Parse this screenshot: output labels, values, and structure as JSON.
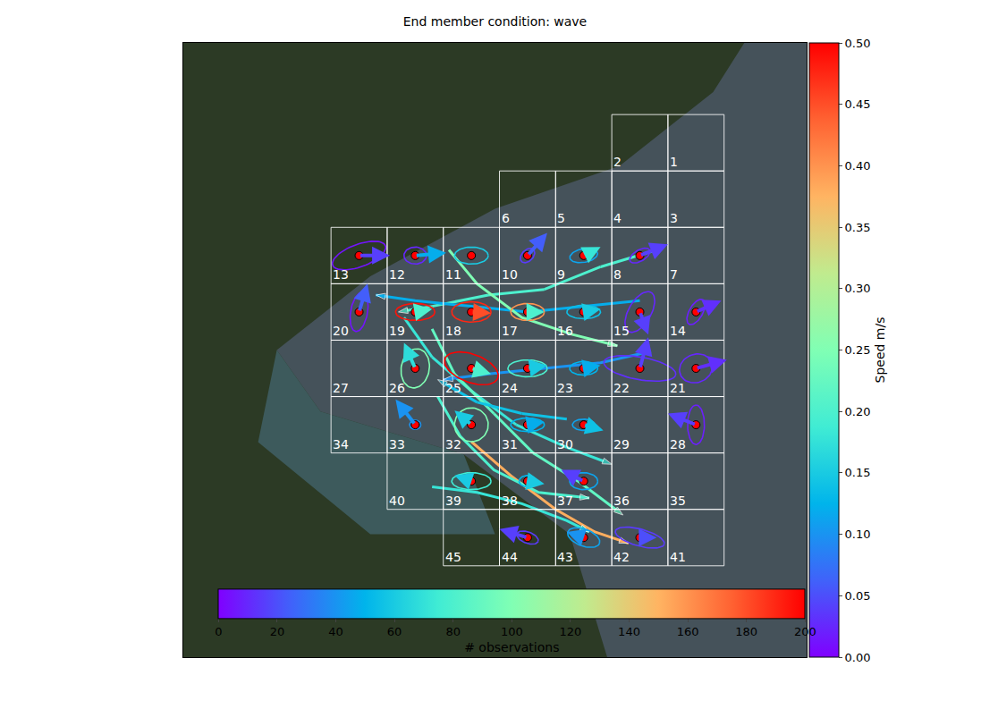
{
  "chart_data": {
    "type": "vector_map",
    "title": "End member condition: wave",
    "xlim": [
      -2.63,
      8.47
    ],
    "ylim": [
      -1.62,
      9.27
    ],
    "tick_labels": false,
    "grid": true,
    "cells": [
      {
        "label": "1",
        "x": 6,
        "y": 7
      },
      {
        "label": "2",
        "x": 5,
        "y": 7
      },
      {
        "label": "3",
        "x": 6,
        "y": 6
      },
      {
        "label": "4",
        "x": 5,
        "y": 6
      },
      {
        "label": "5",
        "x": 4,
        "y": 6
      },
      {
        "label": "6",
        "x": 3,
        "y": 6
      },
      {
        "label": "7",
        "x": 6,
        "y": 5
      },
      {
        "label": "8",
        "x": 5,
        "y": 5
      },
      {
        "label": "9",
        "x": 4,
        "y": 5
      },
      {
        "label": "10",
        "x": 3,
        "y": 5
      },
      {
        "label": "11",
        "x": 2,
        "y": 5
      },
      {
        "label": "12",
        "x": 1,
        "y": 5
      },
      {
        "label": "13",
        "x": 0,
        "y": 5
      },
      {
        "label": "14",
        "x": 6,
        "y": 4
      },
      {
        "label": "15",
        "x": 5,
        "y": 4
      },
      {
        "label": "16",
        "x": 4,
        "y": 4
      },
      {
        "label": "17",
        "x": 3,
        "y": 4
      },
      {
        "label": "18",
        "x": 2,
        "y": 4
      },
      {
        "label": "19",
        "x": 1,
        "y": 4
      },
      {
        "label": "20",
        "x": 0,
        "y": 4
      },
      {
        "label": "21",
        "x": 6,
        "y": 3
      },
      {
        "label": "22",
        "x": 5,
        "y": 3
      },
      {
        "label": "23",
        "x": 4,
        "y": 3
      },
      {
        "label": "24",
        "x": 3,
        "y": 3
      },
      {
        "label": "25",
        "x": 2,
        "y": 3
      },
      {
        "label": "26",
        "x": 1,
        "y": 3
      },
      {
        "label": "27",
        "x": 0,
        "y": 3
      },
      {
        "label": "28",
        "x": 6,
        "y": 2
      },
      {
        "label": "29",
        "x": 5,
        "y": 2
      },
      {
        "label": "30",
        "x": 4,
        "y": 2
      },
      {
        "label": "31",
        "x": 3,
        "y": 2
      },
      {
        "label": "32",
        "x": 2,
        "y": 2
      },
      {
        "label": "33",
        "x": 1,
        "y": 2
      },
      {
        "label": "34",
        "x": 0,
        "y": 2
      },
      {
        "label": "35",
        "x": 6,
        "y": 1
      },
      {
        "label": "36",
        "x": 5,
        "y": 1
      },
      {
        "label": "37",
        "x": 4,
        "y": 1
      },
      {
        "label": "38",
        "x": 3,
        "y": 1
      },
      {
        "label": "39",
        "x": 2,
        "y": 1
      },
      {
        "label": "40",
        "x": 1,
        "y": 1
      },
      {
        "label": "41",
        "x": 6,
        "y": 0
      },
      {
        "label": "42",
        "x": 5,
        "y": 0
      },
      {
        "label": "43",
        "x": 4,
        "y": 0
      },
      {
        "label": "44",
        "x": 3,
        "y": 0
      },
      {
        "label": "45",
        "x": 2,
        "y": 0
      }
    ],
    "stations": [
      {
        "cell": "13",
        "dx": 0.55,
        "dy": 0.0,
        "speed": 0.04,
        "observations": 5,
        "a": 0.5,
        "b": 0.2,
        "angle": 20
      },
      {
        "cell": "12",
        "dx": 0.55,
        "dy": 0.05,
        "speed": 0.12,
        "observations": 10,
        "a": 0.2,
        "b": 0.15,
        "angle": 0
      },
      {
        "cell": "11",
        "dx": 0.1,
        "dy": 0.0,
        "speed": 0.18,
        "observations": 60,
        "a": 0.3,
        "b": 0.15,
        "angle": 0
      },
      {
        "cell": "10",
        "dx": 0.35,
        "dy": 0.4,
        "speed": 0.06,
        "observations": 15,
        "a": 0.15,
        "b": 0.1,
        "angle": 45
      },
      {
        "cell": "9",
        "dx": 0.3,
        "dy": 0.15,
        "speed": 0.18,
        "observations": 45,
        "a": 0.25,
        "b": 0.12,
        "angle": 10
      },
      {
        "cell": "8",
        "dx": 0.5,
        "dy": 0.2,
        "speed": 0.04,
        "observations": 10,
        "a": 0.2,
        "b": 0.1,
        "angle": 30
      },
      {
        "cell": "20",
        "dx": 0.15,
        "dy": 0.5,
        "speed": 0.06,
        "observations": 5,
        "a": 0.35,
        "b": 0.15,
        "angle": 80
      },
      {
        "cell": "19",
        "dx": 0.3,
        "dy": 0.05,
        "speed": 0.2,
        "observations": 195,
        "a": 0.35,
        "b": 0.15,
        "angle": 0
      },
      {
        "cell": "18",
        "dx": 0.35,
        "dy": -0.02,
        "speed": 0.45,
        "observations": 190,
        "a": 0.35,
        "b": 0.18,
        "angle": 0
      },
      {
        "cell": "17",
        "dx": 0.3,
        "dy": 0.0,
        "speed": 0.2,
        "observations": 160,
        "a": 0.3,
        "b": 0.15,
        "angle": 0
      },
      {
        "cell": "16",
        "dx": 0.3,
        "dy": 0.05,
        "speed": 0.15,
        "observations": 55,
        "a": 0.3,
        "b": 0.12,
        "angle": 0
      },
      {
        "cell": "15",
        "dx": 0.15,
        "dy": -0.4,
        "speed": 0.04,
        "observations": 10,
        "a": 0.4,
        "b": 0.2,
        "angle": 60
      },
      {
        "cell": "14",
        "dx": 0.45,
        "dy": 0.2,
        "speed": 0.03,
        "observations": 8,
        "a": 0.25,
        "b": 0.12,
        "angle": 60
      },
      {
        "cell": "26",
        "dx": -0.2,
        "dy": 0.45,
        "speed": 0.17,
        "observations": 100,
        "a": 0.35,
        "b": 0.25,
        "angle": 80
      },
      {
        "cell": "25",
        "dx": 0.35,
        "dy": -0.1,
        "speed": 0.2,
        "observations": 200,
        "a": 0.5,
        "b": 0.25,
        "angle": -20
      },
      {
        "cell": "24",
        "dx": 0.35,
        "dy": 0.05,
        "speed": 0.15,
        "observations": 80,
        "a": 0.35,
        "b": 0.15,
        "angle": 0
      },
      {
        "cell": "23",
        "dx": 0.3,
        "dy": 0.05,
        "speed": 0.12,
        "observations": 50,
        "a": 0.25,
        "b": 0.12,
        "angle": 0
      },
      {
        "cell": "22",
        "dx": 0.15,
        "dy": 0.55,
        "speed": 0.04,
        "observations": 12,
        "a": 0.65,
        "b": 0.2,
        "angle": -10
      },
      {
        "cell": "21",
        "dx": 0.55,
        "dy": 0.15,
        "speed": 0.03,
        "observations": 10,
        "a": 0.3,
        "b": 0.25,
        "angle": 20
      },
      {
        "cell": "33",
        "dx": -0.35,
        "dy": 0.45,
        "speed": 0.1,
        "observations": 40,
        "a": 0.1,
        "b": 0.08,
        "angle": 0
      },
      {
        "cell": "32",
        "dx": -0.3,
        "dy": 0.25,
        "speed": 0.15,
        "observations": 100,
        "a": 0.3,
        "b": 0.3,
        "angle": 60
      },
      {
        "cell": "31",
        "dx": 0.3,
        "dy": 0.05,
        "speed": 0.12,
        "observations": 50,
        "a": 0.3,
        "b": 0.12,
        "angle": 0
      },
      {
        "cell": "30",
        "dx": 0.35,
        "dy": -0.1,
        "speed": 0.14,
        "observations": 45,
        "a": 0.2,
        "b": 0.1,
        "angle": 0
      },
      {
        "cell": "28",
        "dx": -0.5,
        "dy": 0.2,
        "speed": 0.04,
        "observations": 8,
        "a": 0.35,
        "b": 0.15,
        "angle": 90
      },
      {
        "cell": "39",
        "dx": -0.3,
        "dy": 0.1,
        "speed": 0.15,
        "observations": 75,
        "a": 0.35,
        "b": 0.15,
        "angle": 0
      },
      {
        "cell": "38",
        "dx": 0.3,
        "dy": -0.05,
        "speed": 0.15,
        "observations": 50,
        "a": 0.15,
        "b": 0.1,
        "angle": 0
      },
      {
        "cell": "37",
        "dx": -0.4,
        "dy": 0.2,
        "speed": 0.04,
        "observations": 45,
        "a": 0.25,
        "b": 0.15,
        "angle": 0
      },
      {
        "cell": "44",
        "dx": -0.5,
        "dy": 0.15,
        "speed": 0.04,
        "observations": 15,
        "a": 0.2,
        "b": 0.1,
        "angle": -20
      },
      {
        "cell": "43",
        "dx": -0.3,
        "dy": 0.1,
        "speed": 0.1,
        "observations": 45,
        "a": 0.3,
        "b": 0.15,
        "angle": -20
      },
      {
        "cell": "42",
        "dx": 0.3,
        "dy": 0.0,
        "speed": 0.05,
        "observations": 15,
        "a": 0.45,
        "b": 0.15,
        "angle": -15
      }
    ],
    "tracks": [
      {
        "speed": 0.2,
        "x": [
          5.8,
          4.8,
          3.8,
          2.8,
          1.8,
          1.2
        ],
        "y": [
          5.6,
          5.3,
          4.9,
          4.8,
          4.6,
          4.5
        ]
      },
      {
        "speed": 0.12,
        "x": [
          5.5,
          4.5,
          3.5,
          2.5,
          1.5,
          0.8
        ],
        "y": [
          4.7,
          4.6,
          4.5,
          4.6,
          4.7,
          4.8
        ]
      },
      {
        "speed": 0.18,
        "x": [
          1.3,
          1.8,
          2.5,
          3.3,
          4.2,
          5.0
        ],
        "y": [
          4.4,
          3.7,
          3.1,
          2.5,
          2.1,
          1.8
        ]
      },
      {
        "speed": 0.22,
        "x": [
          1.8,
          2.2,
          2.9,
          3.6,
          4.4,
          5.2
        ],
        "y": [
          4.2,
          3.4,
          2.7,
          2.0,
          1.5,
          0.9
        ]
      },
      {
        "speed": 0.38,
        "x": [
          2.5,
          3.2,
          4.0,
          4.7,
          5.3
        ],
        "y": [
          2.2,
          1.6,
          1.0,
          0.6,
          0.4
        ]
      },
      {
        "speed": 0.1,
        "x": [
          5.7,
          4.8,
          3.8,
          2.8,
          2.0
        ],
        "y": [
          3.8,
          3.6,
          3.5,
          3.4,
          3.3
        ]
      },
      {
        "speed": 0.2,
        "x": [
          1.9,
          2.3,
          2.9,
          3.7,
          4.6
        ],
        "y": [
          3.0,
          2.3,
          1.7,
          1.3,
          1.2
        ]
      },
      {
        "speed": 0.25,
        "x": [
          2.1,
          2.6,
          3.4,
          4.3,
          5.1
        ],
        "y": [
          5.6,
          5.0,
          4.4,
          4.1,
          3.9
        ]
      },
      {
        "speed": 0.14,
        "x": [
          4.2,
          3.4,
          2.6,
          1.9
        ],
        "y": [
          2.6,
          2.7,
          2.9,
          3.3
        ]
      },
      {
        "speed": 0.18,
        "x": [
          1.8,
          2.6,
          3.4,
          4.2,
          4.6
        ],
        "y": [
          1.4,
          1.3,
          1.1,
          0.8,
          0.6
        ]
      }
    ],
    "speed_colorbar": {
      "label": "Speed m/s",
      "range": [
        0,
        0.5
      ],
      "ticks": [
        {
          "value": 0,
          "label": "0.00"
        },
        {
          "value": 0.05,
          "label": "0.05"
        },
        {
          "value": 0.1,
          "label": "0.10"
        },
        {
          "value": 0.15,
          "label": "0.15"
        },
        {
          "value": 0.2,
          "label": "0.20"
        },
        {
          "value": 0.25,
          "label": "0.25"
        },
        {
          "value": 0.3,
          "label": "0.30"
        },
        {
          "value": 0.35,
          "label": "0.35"
        },
        {
          "value": 0.4,
          "label": "0.40"
        },
        {
          "value": 0.45,
          "label": "0.45"
        },
        {
          "value": 0.5,
          "label": "0.50"
        }
      ]
    },
    "observations_colorbar": {
      "label": "# observations",
      "range": [
        0,
        200
      ],
      "ticks": [
        0,
        20,
        40,
        60,
        80,
        100,
        120,
        140,
        160,
        180,
        200
      ]
    }
  }
}
